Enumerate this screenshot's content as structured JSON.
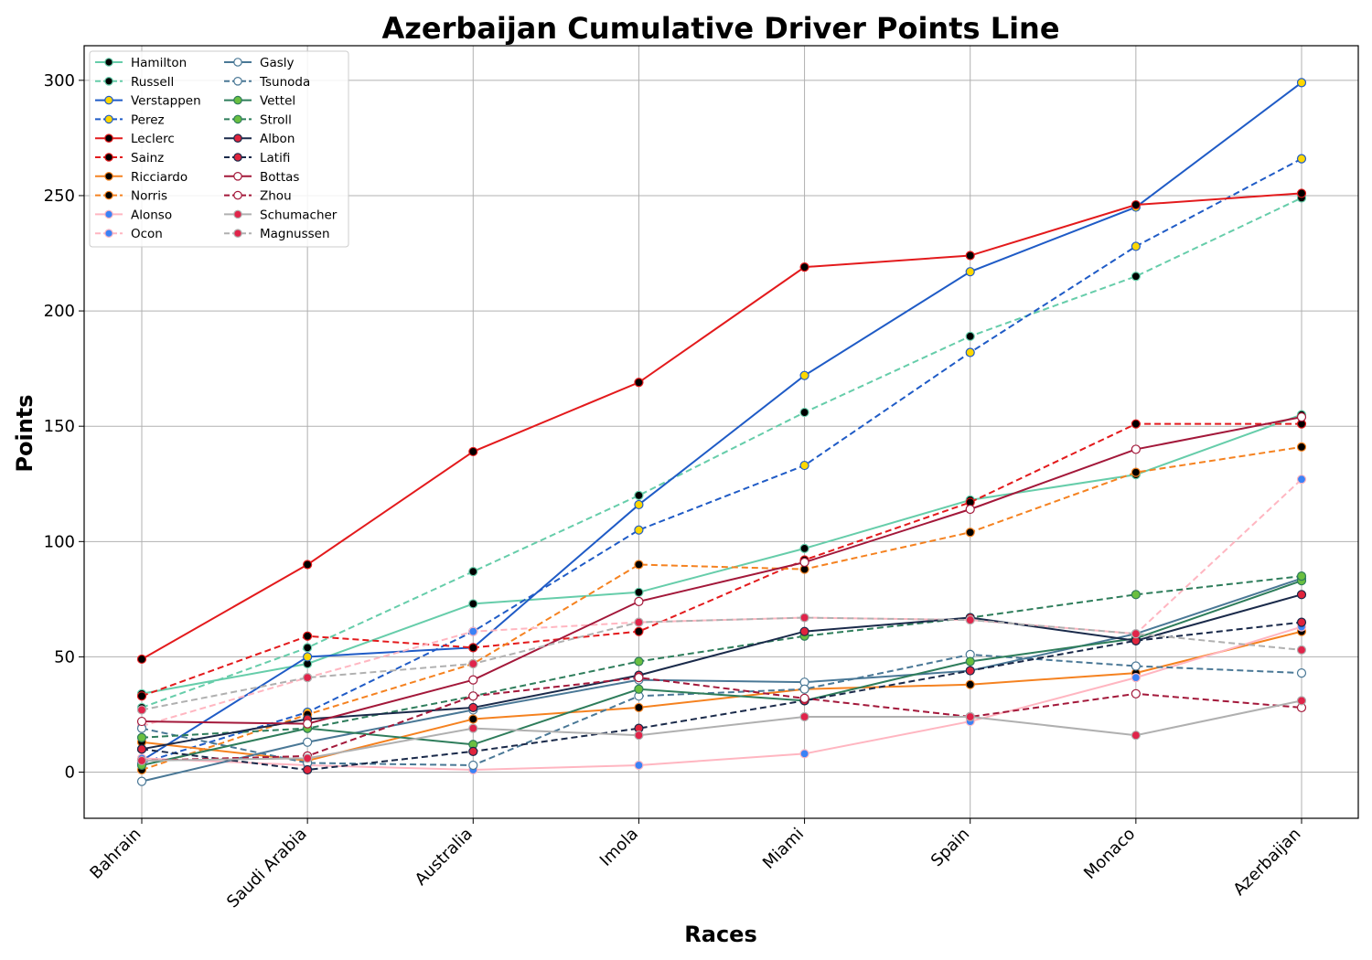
{
  "chart_data": {
    "type": "line",
    "title": "Azerbaijan Cumulative Driver Points Line",
    "xlabel": "Races",
    "ylabel": "Points",
    "categories": [
      "Bahrain",
      "Saudi Arabia",
      "Australia",
      "Imola",
      "Miami",
      "Spain",
      "Monaco",
      "Azerbaijan"
    ],
    "ylim": [
      -20,
      315
    ],
    "yticks": [
      0,
      50,
      100,
      150,
      200,
      250,
      300
    ],
    "grid": true,
    "legend_position": "top-left",
    "series": [
      {
        "name": "Hamilton",
        "color": "#66cdaa",
        "dash": false,
        "marker": "#000000",
        "values": [
          34,
          47,
          73,
          78,
          97,
          118,
          129,
          155
        ]
      },
      {
        "name": "Russell",
        "color": "#66cdaa",
        "dash": true,
        "marker": "#000000",
        "values": [
          28,
          54,
          87,
          120,
          156,
          189,
          215,
          249
        ]
      },
      {
        "name": "Verstappen",
        "color": "#1f5bc6",
        "dash": false,
        "marker": "#ffd700",
        "values": [
          5,
          50,
          54,
          116,
          172,
          217,
          245,
          299
        ]
      },
      {
        "name": "Perez",
        "color": "#1f5bc6",
        "dash": true,
        "marker": "#ffd700",
        "values": [
          4,
          26,
          61,
          105,
          133,
          182,
          228,
          266
        ]
      },
      {
        "name": "Leclerc",
        "color": "#e31a1c",
        "dash": false,
        "marker": "#000000",
        "values": [
          49,
          90,
          139,
          169,
          219,
          224,
          246,
          251
        ]
      },
      {
        "name": "Sainz",
        "color": "#e31a1c",
        "dash": true,
        "marker": "#000000",
        "values": [
          33,
          59,
          54,
          61,
          92,
          117,
          151,
          151
        ]
      },
      {
        "name": "Ricciardo",
        "color": "#f58220",
        "dash": false,
        "marker": "#000000",
        "values": [
          13,
          5,
          23,
          28,
          36,
          38,
          43,
          61
        ]
      },
      {
        "name": "Norris",
        "color": "#f58220",
        "dash": true,
        "marker": "#000000",
        "values": [
          1,
          25,
          47,
          90,
          88,
          104,
          130,
          141
        ]
      },
      {
        "name": "Alonso",
        "color": "#ffb6c1",
        "dash": false,
        "marker": "#3b82f6",
        "values": [
          6,
          3,
          1,
          3,
          8,
          22,
          41,
          63
        ]
      },
      {
        "name": "Ocon",
        "color": "#ffb6c1",
        "dash": true,
        "marker": "#3b82f6",
        "values": [
          20,
          41,
          61,
          65,
          67,
          66,
          60,
          127
        ]
      },
      {
        "name": "Gasly",
        "color": "#4a7896",
        "dash": false,
        "marker": "#ffffff",
        "values": [
          -4,
          13,
          27,
          40,
          39,
          44,
          60,
          84
        ]
      },
      {
        "name": "Tsunoda",
        "color": "#4a7896",
        "dash": true,
        "marker": "#ffffff",
        "values": [
          19,
          4,
          3,
          33,
          36,
          51,
          46,
          43
        ]
      },
      {
        "name": "Vettel",
        "color": "#2e7d5b",
        "dash": false,
        "marker": "#6abf40",
        "values": [
          3,
          19,
          12,
          36,
          31,
          48,
          58,
          83
        ]
      },
      {
        "name": "Stroll",
        "color": "#2e7d5b",
        "dash": true,
        "marker": "#6abf40",
        "values": [
          15,
          19,
          33,
          48,
          59,
          67,
          77,
          85
        ]
      },
      {
        "name": "Albon",
        "color": "#1a2a4a",
        "dash": false,
        "marker": "#e0243c",
        "values": [
          10,
          23,
          28,
          42,
          61,
          67,
          57,
          77
        ]
      },
      {
        "name": "Latifi",
        "color": "#1a2a4a",
        "dash": true,
        "marker": "#e0243c",
        "values": [
          10,
          1,
          9,
          19,
          31,
          44,
          57,
          65
        ]
      },
      {
        "name": "Bottas",
        "color": "#a3183a",
        "dash": false,
        "marker": "#ffffff",
        "values": [
          22,
          21,
          40,
          74,
          91,
          114,
          140,
          154
        ]
      },
      {
        "name": "Zhou",
        "color": "#a3183a",
        "dash": true,
        "marker": "#ffffff",
        "values": [
          5,
          7,
          33,
          41,
          32,
          24,
          34,
          28
        ]
      },
      {
        "name": "Schumacher",
        "color": "#b0b0b0",
        "dash": false,
        "marker": "#e0244a",
        "values": [
          5,
          6,
          19,
          16,
          24,
          24,
          16,
          31
        ]
      },
      {
        "name": "Magnussen",
        "color": "#b0b0b0",
        "dash": true,
        "marker": "#e0244a",
        "values": [
          27,
          41,
          47,
          65,
          67,
          66,
          60,
          53
        ]
      }
    ]
  }
}
